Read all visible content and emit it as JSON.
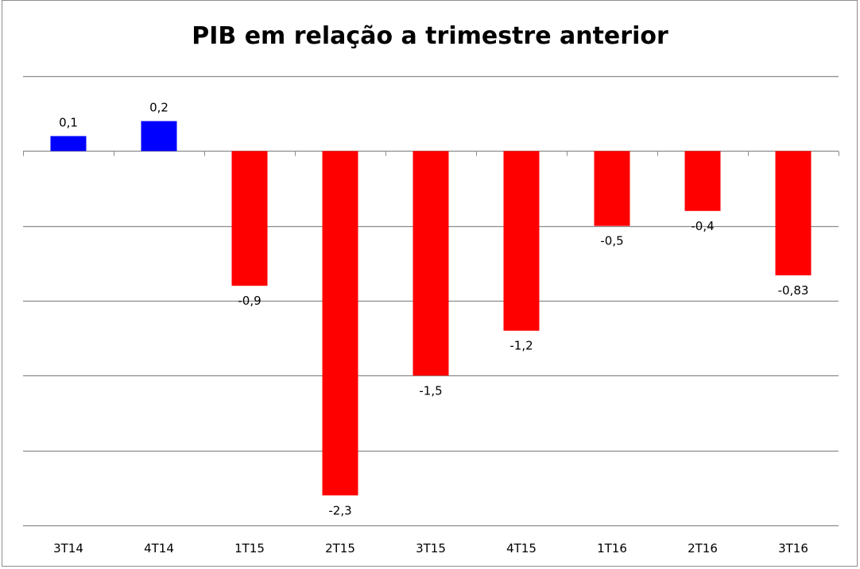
{
  "chart_data": {
    "type": "bar",
    "title": "PIB em relação a trimestre anterior",
    "categories": [
      "3T14",
      "4T14",
      "1T15",
      "2T15",
      "3T15",
      "4T15",
      "1T16",
      "2T16",
      "3T16"
    ],
    "values": [
      0.1,
      0.2,
      -0.9,
      -2.3,
      -1.5,
      -1.2,
      -0.5,
      -0.4,
      -0.83
    ],
    "data_labels": [
      "0,1",
      "0,2",
      "-0,9",
      "-2,3",
      "-1,5",
      "-1,2",
      "-0,5",
      "-0,4",
      "-0,83"
    ],
    "xlabel": "",
    "ylabel": "",
    "ylim": [
      -2.5,
      0.5
    ],
    "ygrid_step": 0.5,
    "grid": true,
    "y_tick_labels_shown": false,
    "legend": "none",
    "colors": {
      "positive": "#0000ff",
      "negative": "#ff0000",
      "grid": "#8c8c8c"
    }
  }
}
